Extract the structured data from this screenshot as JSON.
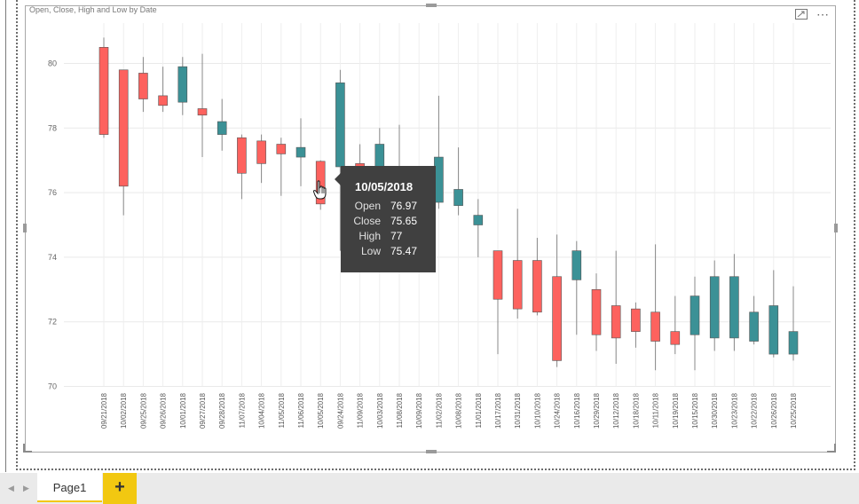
{
  "chart": {
    "title": "Open, Close, High and Low by Date"
  },
  "tooltip": {
    "date": "10/05/2018",
    "rows": [
      {
        "label": "Open",
        "value": "76.97"
      },
      {
        "label": "Close",
        "value": "75.65"
      },
      {
        "label": "High",
        "value": "77"
      },
      {
        "label": "Low",
        "value": "75.47"
      }
    ]
  },
  "pages": {
    "tab_label": "Page1",
    "add_label": "+"
  },
  "colors": {
    "up": "#3b9196",
    "down": "#fd625e",
    "tooltip_bg": "#404040",
    "accent": "#f2c811"
  },
  "chart_data": {
    "type": "candlestick",
    "title": "Open, Close, High and Low by Date",
    "xlabel": "",
    "ylabel": "",
    "ylim": [
      70,
      81
    ],
    "yticks": [
      70,
      72,
      74,
      76,
      78,
      80
    ],
    "grid": true,
    "categories": [
      "09/21/2018",
      "10/02/2018",
      "09/25/2018",
      "09/26/2018",
      "10/01/2018",
      "09/27/2018",
      "09/28/2018",
      "11/07/2018",
      "10/04/2018",
      "11/05/2018",
      "11/06/2018",
      "10/05/2018",
      "09/24/2018",
      "11/09/2018",
      "10/03/2018",
      "11/08/2018",
      "10/09/2018",
      "11/02/2018",
      "10/08/2018",
      "11/01/2018",
      "10/17/2018",
      "10/31/2018",
      "10/10/2018",
      "10/24/2018",
      "10/16/2018",
      "10/29/2018",
      "10/12/2018",
      "10/18/2018",
      "10/11/2018",
      "10/19/2018",
      "10/15/2018",
      "10/30/2018",
      "10/23/2018",
      "10/22/2018",
      "10/26/2018",
      "10/25/2018"
    ],
    "open": [
      80.5,
      79.8,
      79.7,
      79.0,
      78.8,
      78.6,
      77.8,
      77.7,
      77.6,
      77.5,
      77.1,
      76.97,
      76.8,
      76.9,
      76.8,
      76.5,
      76.2,
      75.7,
      75.6,
      75.0,
      74.2,
      73.9,
      73.9,
      73.4,
      73.3,
      73.0,
      72.5,
      72.4,
      72.3,
      71.7,
      71.6,
      71.5,
      71.5,
      71.4,
      71.0,
      71.0
    ],
    "close": [
      77.8,
      76.2,
      78.9,
      78.7,
      79.9,
      78.4,
      78.2,
      76.6,
      76.9,
      77.2,
      77.4,
      75.65,
      79.4,
      76.4,
      77.5,
      76.0,
      75.1,
      77.1,
      76.1,
      75.3,
      72.7,
      72.4,
      72.3,
      70.8,
      74.2,
      71.6,
      71.5,
      71.7,
      71.4,
      71.3,
      72.8,
      73.4,
      73.4,
      72.3,
      72.5,
      71.7
    ],
    "high": [
      80.8,
      79.8,
      80.2,
      79.9,
      80.2,
      80.3,
      78.9,
      77.8,
      77.8,
      77.7,
      78.3,
      77.0,
      79.8,
      77.5,
      78.0,
      78.1,
      76.4,
      79.0,
      77.4,
      75.8,
      74.1,
      75.5,
      74.6,
      74.7,
      74.5,
      73.5,
      74.2,
      72.6,
      74.4,
      72.8,
      73.4,
      73.9,
      74.1,
      72.8,
      73.6,
      73.1
    ],
    "low": [
      77.7,
      75.3,
      78.5,
      78.5,
      78.4,
      77.1,
      77.3,
      75.8,
      76.3,
      75.9,
      76.2,
      75.47,
      74.2,
      75.8,
      76.5,
      75.7,
      74.1,
      75.5,
      75.3,
      74.0,
      71.0,
      72.1,
      72.2,
      70.6,
      71.6,
      71.1,
      70.7,
      71.2,
      70.5,
      71.0,
      70.5,
      71.1,
      71.1,
      71.3,
      70.9,
      70.8
    ]
  }
}
